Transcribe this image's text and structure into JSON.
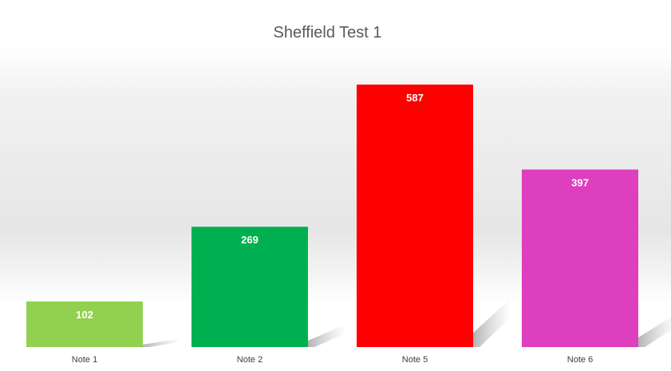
{
  "chart_data": {
    "type": "bar",
    "title": "Sheffield Test 1",
    "categories": [
      "Note 1",
      "Note 2",
      "Note 5",
      "Note 6"
    ],
    "values": [
      102,
      269,
      587,
      397
    ],
    "colors": [
      "#92d050",
      "#00b050",
      "#ff0000",
      "#dd3fbf"
    ],
    "xlabel": "",
    "ylabel": "",
    "ylim": [
      0,
      587
    ],
    "grid": false,
    "legend": "none",
    "data_labels": "inside-end"
  }
}
